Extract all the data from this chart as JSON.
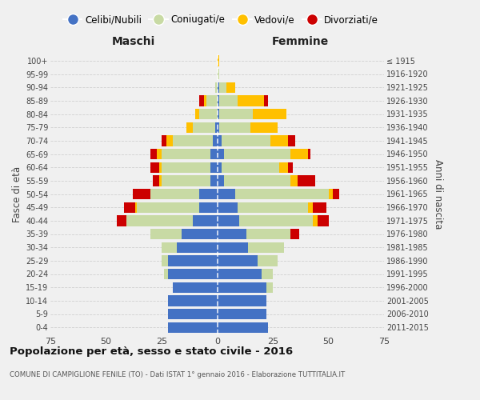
{
  "age_groups": [
    "0-4",
    "5-9",
    "10-14",
    "15-19",
    "20-24",
    "25-29",
    "30-34",
    "35-39",
    "40-44",
    "45-49",
    "50-54",
    "55-59",
    "60-64",
    "65-69",
    "70-74",
    "75-79",
    "80-84",
    "85-89",
    "90-94",
    "95-99",
    "100+"
  ],
  "birth_years": [
    "2011-2015",
    "2006-2010",
    "2001-2005",
    "1996-2000",
    "1991-1995",
    "1986-1990",
    "1981-1985",
    "1976-1980",
    "1971-1975",
    "1966-1970",
    "1961-1965",
    "1956-1960",
    "1951-1955",
    "1946-1950",
    "1941-1945",
    "1936-1940",
    "1931-1935",
    "1926-1930",
    "1921-1925",
    "1916-1920",
    "≤ 1915"
  ],
  "male_celibi": [
    22,
    22,
    22,
    20,
    22,
    22,
    18,
    16,
    11,
    8,
    8,
    3,
    3,
    3,
    2,
    1,
    0,
    0,
    0,
    0,
    0
  ],
  "male_coniugati": [
    0,
    0,
    0,
    0,
    2,
    3,
    7,
    14,
    30,
    28,
    22,
    22,
    22,
    22,
    18,
    10,
    8,
    5,
    1,
    0,
    0
  ],
  "male_vedovi": [
    0,
    0,
    0,
    0,
    0,
    0,
    0,
    0,
    0,
    1,
    0,
    1,
    1,
    2,
    3,
    3,
    2,
    1,
    0,
    0,
    0
  ],
  "male_divorziati": [
    0,
    0,
    0,
    0,
    0,
    0,
    0,
    0,
    4,
    5,
    8,
    3,
    4,
    3,
    2,
    0,
    0,
    2,
    0,
    0,
    0
  ],
  "fem_nubili": [
    23,
    22,
    22,
    22,
    20,
    18,
    14,
    13,
    10,
    9,
    8,
    3,
    2,
    3,
    2,
    1,
    1,
    1,
    1,
    0,
    0
  ],
  "fem_coniugate": [
    0,
    0,
    0,
    3,
    5,
    9,
    16,
    20,
    33,
    32,
    42,
    30,
    26,
    30,
    22,
    14,
    15,
    8,
    3,
    1,
    0
  ],
  "fem_vedove": [
    0,
    0,
    0,
    0,
    0,
    0,
    0,
    0,
    2,
    2,
    2,
    3,
    4,
    8,
    8,
    12,
    15,
    12,
    4,
    0,
    1
  ],
  "fem_divorziate": [
    0,
    0,
    0,
    0,
    0,
    0,
    0,
    4,
    5,
    6,
    3,
    8,
    2,
    1,
    3,
    0,
    0,
    2,
    0,
    0,
    0
  ],
  "color_celibi": "#4472c4",
  "color_coniugati": "#c8daa4",
  "color_vedovi": "#ffc000",
  "color_divorziati": "#cc0000",
  "xlim": 75,
  "title": "Popolazione per età, sesso e stato civile - 2016",
  "subtitle": "COMUNE DI CAMPIGLIONE FENILE (TO) - Dati ISTAT 1° gennaio 2016 - Elaborazione TUTTITALIA.IT",
  "ylabel_left": "Fasce di età",
  "ylabel_right": "Anni di nascita",
  "label_maschi": "Maschi",
  "label_femmine": "Femmine",
  "legend_labels": [
    "Celibi/Nubili",
    "Coniugati/e",
    "Vedovi/e",
    "Divorziati/e"
  ],
  "bg_color": "#f0f0f0",
  "grid_color": "#d0d0d0"
}
